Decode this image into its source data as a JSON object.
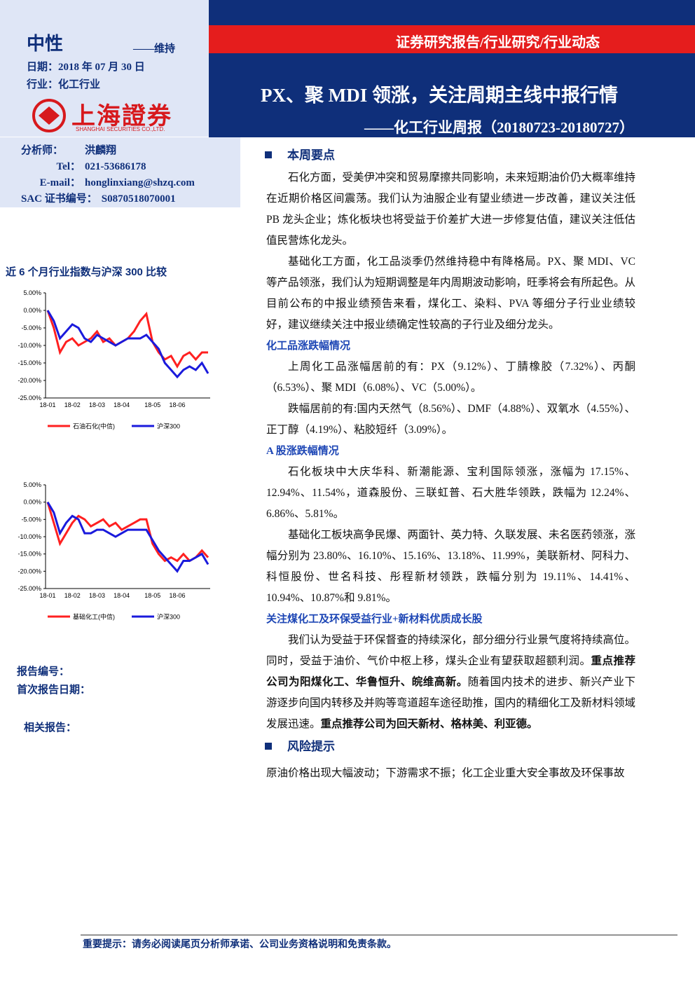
{
  "header": {
    "rating": "中性",
    "rating_note": "——维持",
    "date": "日期：2018 年 07 月 30 日",
    "industry": "行业：化工行业",
    "logo_cn": "上海證券",
    "logo_en": "SHANGHAI SECURITIES CO.,LTD.",
    "report_type": "证券研究报告/行业研究/行业动态",
    "title": "PX、聚 MDI 领涨，关注周期主线中报行情",
    "subtitle": "——化工行业周报（20180723-20180727）"
  },
  "analyst": [
    [
      "分析师：",
      "洪麟翔"
    ],
    [
      "Tel：",
      "021-53686178"
    ],
    [
      "E-mail：",
      "honglinxiang@shzq.com"
    ],
    [
      "SAC 证书编号：",
      "S0870518070001"
    ]
  ],
  "chart_data": [
    {
      "type": "line",
      "title": "近 6 个月行业指数与沪深 300 比较",
      "categories": [
        "18-01",
        null,
        null,
        null,
        "18-02",
        null,
        null,
        null,
        "18-03",
        null,
        null,
        null,
        "18-04",
        null,
        null,
        null,
        null,
        "18-05",
        null,
        null,
        null,
        "18-06",
        null,
        null,
        null,
        null,
        null
      ],
      "series": [
        {
          "name": "石油石化(中信)",
          "color": "#ff2020",
          "values": [
            0,
            -5,
            -12,
            -9,
            -8,
            -10,
            -9,
            -8,
            -6,
            -9,
            -8,
            -10,
            -9,
            -8,
            -6,
            -3,
            -1,
            -9,
            -12,
            -14,
            -13,
            -16,
            -13,
            -12,
            -14,
            -12,
            -12
          ]
        },
        {
          "name": "沪深300",
          "color": "#1a1adc",
          "values": [
            0,
            -3,
            -8,
            -6,
            -4,
            -5,
            -8,
            -9,
            -7,
            -8,
            -9,
            -10,
            -9,
            -8,
            -8,
            -8,
            -7,
            -9,
            -11,
            -15,
            -17,
            -19,
            -17,
            -16,
            -17,
            -15,
            -18
          ]
        }
      ],
      "ylim": [
        -25,
        5
      ],
      "yticks": [
        {
          "value": -25,
          "label": "-25.00%"
        },
        {
          "value": -20,
          "label": "-20.00%"
        },
        {
          "value": -15,
          "label": "-15.00%"
        },
        {
          "value": -10,
          "label": "-10.00%"
        },
        {
          "value": -5,
          "label": "-5.00%"
        },
        {
          "value": 0,
          "label": "0.00%"
        },
        {
          "value": 5,
          "label": "5.00%"
        }
      ]
    },
    {
      "type": "line",
      "categories": [
        "18-01",
        null,
        null,
        null,
        "18-02",
        null,
        null,
        null,
        "18-03",
        null,
        null,
        null,
        "18-04",
        null,
        null,
        null,
        null,
        "18-05",
        null,
        null,
        null,
        "18-06",
        null,
        null,
        null,
        null,
        null
      ],
      "series": [
        {
          "name": "基础化工(中信)",
          "color": "#ff2020",
          "values": [
            0,
            -6,
            -12,
            -9,
            -6,
            -4,
            -5,
            -7,
            -6,
            -5,
            -7,
            -6,
            -8,
            -7,
            -6,
            -5,
            -5,
            -12,
            -15,
            -17,
            -16,
            -17,
            -15,
            -17,
            -16,
            -14,
            -16
          ]
        },
        {
          "name": "沪深300",
          "color": "#1a1adc",
          "values": [
            0,
            -3,
            -9,
            -6,
            -4,
            -5,
            -9,
            -9,
            -8,
            -8,
            -9,
            -10,
            -9,
            -8,
            -8,
            -8,
            -8,
            -11,
            -14,
            -16,
            -18,
            -20,
            -17,
            -17,
            -16,
            -15,
            -18
          ]
        }
      ],
      "ylim": [
        -25,
        5
      ],
      "yticks": [
        {
          "value": -25,
          "label": "-25.00%"
        },
        {
          "value": -20,
          "label": "-20.00%"
        },
        {
          "value": -15,
          "label": "-15.00%"
        },
        {
          "value": -10,
          "label": "-10.00%"
        },
        {
          "value": -5,
          "label": "-5.00%"
        },
        {
          "value": 0,
          "label": "0.00%"
        },
        {
          "value": 5,
          "label": "5.00%"
        }
      ]
    }
  ],
  "report_info": {
    "number": "报告编号：",
    "first_date": "首次报告日期：",
    "related": "相关报告："
  },
  "sections": [
    {
      "heading": "本周要点",
      "paragraphs": [
        [
          {
            "text": "石化方面，受美伊冲突和贸易摩擦共同影响，未来短期油价仍大概率维持在近期价格区间震荡。我们认为油服企业有望业绩进一步改善，建议关注低 PB 龙头企业；炼化板块也将受益于价差扩大进一步修复估值，建议关注低估值民营炼化龙头。"
          }
        ],
        [
          {
            "text": "基础化工方面，化工品淡季仍然维持稳中有降格局。PX、聚 MDI、VC 等产品领涨，我们认为短期调整是年内周期波动影响，旺季将会有所起色。从目前公布的中报业绩预告来看，煤化工、染料、PVA 等细分子行业业绩较好，建议继续关注中报业绩确定性较高的子行业及细分龙头。"
          }
        ]
      ]
    },
    {
      "subheading": "化工品涨跌幅情况",
      "paragraphs": [
        [
          {
            "text": "上周化工品涨幅居前的有：PX（9.12%）、丁腈橡胶（7.32%）、丙酮（6.53%）、聚 MDI（6.08%）、VC（5.00%）。"
          }
        ],
        [
          {
            "text": "跌幅居前的有:国内天然气（8.56%）、DMF（4.88%）、双氧水（4.55%）、正丁醇（4.19%）、粘胶短纤（3.09%）。"
          }
        ]
      ]
    },
    {
      "subheading": "A 股涨跌幅情况",
      "paragraphs": [
        [
          {
            "text": "石化板块中大庆华科、新潮能源、宝利国际领涨，涨幅为 17.15%、12.94%、11.54%，道森股份、三联虹普、石大胜华领跌，跌幅为 12.24%、6.86%、5.81%。"
          }
        ],
        [
          {
            "text": "基础化工板块高争民爆、两面针、英力特、久联发展、未名医药领涨，涨幅分别为 23.80%、16.10%、15.16%、13.18%、11.99%，美联新材、阿科力、科恒股份、世名科技、彤程新材领跌，跌幅分别为 19.11%、14.41%、10.94%、10.87%和 9.81%。"
          }
        ]
      ]
    },
    {
      "subheading": "关注煤化工及环保受益行业+新材料优质成长股",
      "paragraphs": [
        [
          {
            "text": "我们认为受益于环保督查的持续深化，部分细分行业景气度将持续高位。同时，受益于油价、气价中枢上移，煤头企业有望获取超额利润。"
          },
          {
            "bold": "重点推荐公司为阳煤化工、华鲁恒升、皖维高新。"
          },
          {
            "text": "随着国内技术的进步、新兴产业下游逐步向国内转移及并购等弯道超车途径助推，国内的精细化工及新材料领域发展迅速。"
          },
          {
            "bold": "重点推荐公司为回天新材、格林美、利亚德。"
          }
        ]
      ]
    },
    {
      "heading": "风险提示",
      "indent": false,
      "paragraphs": [
        [
          {
            "text": "原油价格出现大幅波动；下游需求不振；化工企业重大安全事故及环保事故"
          }
        ]
      ]
    }
  ],
  "footer": "重要提示：请务必阅读尾页分析师承诺、公司业务资格说明和免责条款。"
}
